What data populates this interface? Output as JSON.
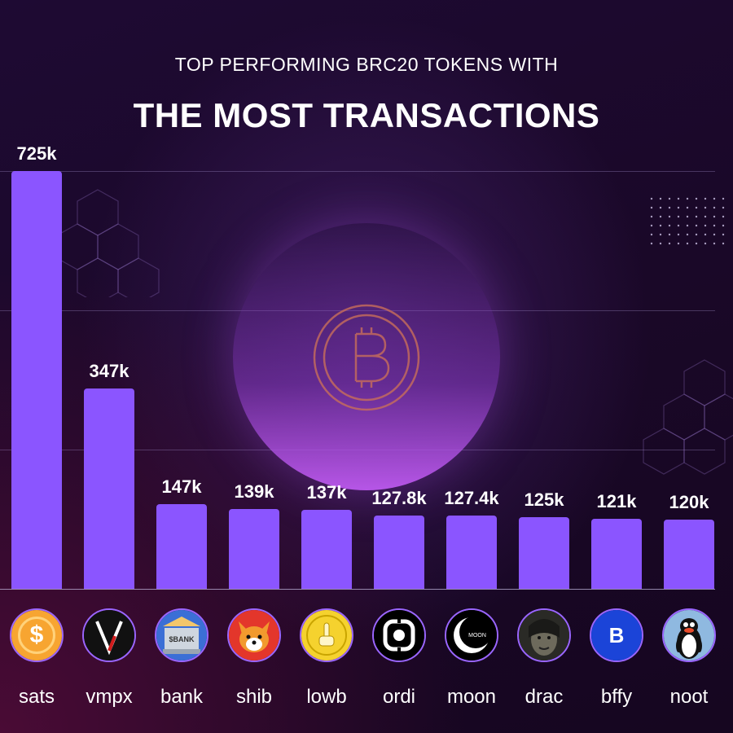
{
  "header": {
    "subtitle": "TOP PERFORMING BRC20 TOKENS WITH",
    "title": "THE MOST TRANSACTIONS"
  },
  "colors": {
    "bar": "#8b55ff",
    "background": "#1e0a33",
    "text": "#ffffff",
    "logo_ring": "#9a66ff"
  },
  "chart_data": {
    "type": "bar",
    "categories": [
      "sats",
      "vmpx",
      "bank",
      "shib",
      "lowb",
      "ordi",
      "moon",
      "drac",
      "bffy",
      "noot"
    ],
    "values": [
      725000,
      347000,
      147000,
      139000,
      137000,
      127800,
      127400,
      125000,
      121000,
      120000
    ],
    "data_labels": [
      "725k",
      "347k",
      "147k",
      "139k",
      "137k",
      "127.8k",
      "127.4k",
      "125k",
      "121k",
      "120k"
    ],
    "title": "THE MOST TRANSACTIONS",
    "subtitle": "TOP PERFORMING BRC20 TOKENS WITH",
    "xlabel": "",
    "ylabel": "",
    "ylim": [
      0,
      725000
    ],
    "grid": true,
    "legend": "none"
  },
  "tokens": [
    {
      "name": "sats",
      "icon": "sats-dollar-coin-icon",
      "logo_text": "$"
    },
    {
      "name": "vmpx",
      "icon": "vmpx-v-logo-icon",
      "logo_text": ""
    },
    {
      "name": "bank",
      "icon": "bank-building-icon",
      "logo_text": "$BANK"
    },
    {
      "name": "shib",
      "icon": "shiba-inu-dog-icon",
      "logo_text": ""
    },
    {
      "name": "lowb",
      "icon": "lowb-gold-coin-icon",
      "logo_text": ""
    },
    {
      "name": "ordi",
      "icon": "ordi-ring-icon",
      "logo_text": ""
    },
    {
      "name": "moon",
      "icon": "moon-crescent-icon",
      "logo_text": "MOON"
    },
    {
      "name": "drac",
      "icon": "drac-face-icon",
      "logo_text": ""
    },
    {
      "name": "bffy",
      "icon": "bffy-letter-b-icon",
      "logo_text": "B"
    },
    {
      "name": "noot",
      "icon": "penguin-icon",
      "logo_text": ""
    }
  ],
  "decor": {
    "center_icon": "bitcoin-outline-icon"
  }
}
